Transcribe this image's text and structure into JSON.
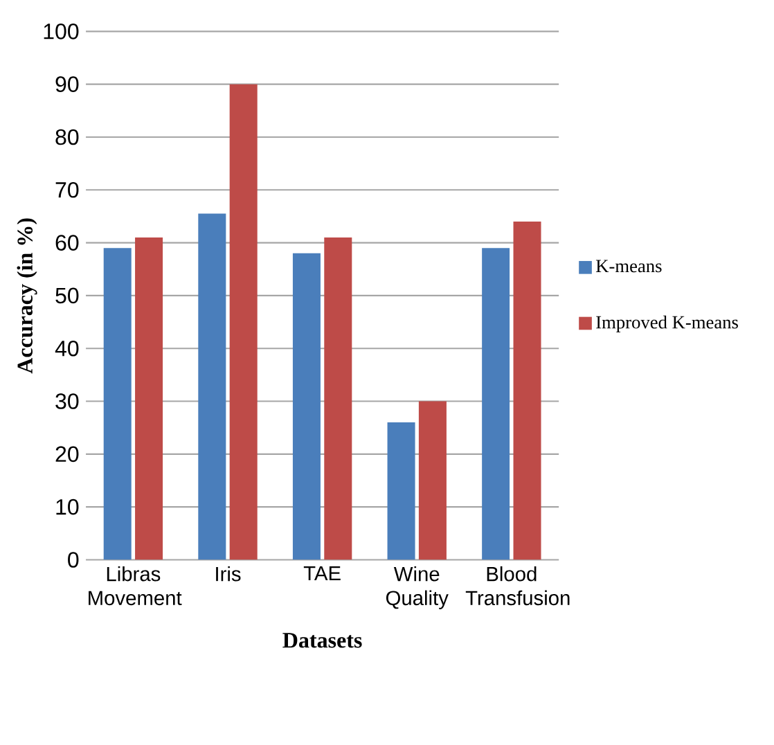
{
  "chart_data": {
    "type": "bar",
    "xlabel": "Datasets",
    "ylabel": "Accuracy (in %)",
    "categories": [
      "Libras Movement",
      "Iris",
      "TAE",
      "Wine Quality",
      "Blood Transfusion"
    ],
    "series": [
      {
        "name": "K-means",
        "color": "#4a7ebb",
        "values": [
          59,
          65.5,
          58,
          26,
          59
        ]
      },
      {
        "name": "Improved K-means",
        "color": "#be4b48",
        "values": [
          61,
          90,
          61,
          30,
          64
        ]
      }
    ],
    "ylim": [
      0,
      100
    ],
    "yticks": [
      0,
      10,
      20,
      30,
      40,
      50,
      60,
      70,
      80,
      90,
      100
    ],
    "grid": "y",
    "legend": "right"
  }
}
